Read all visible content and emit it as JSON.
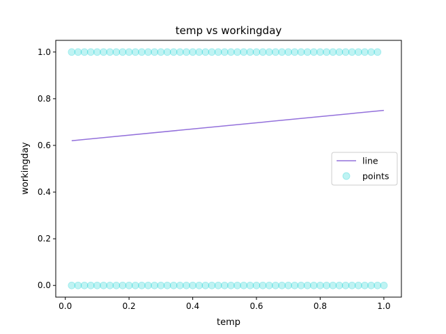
{
  "chart_data": {
    "type": "scatter",
    "title": "temp vs workingday",
    "xlabel": "temp",
    "ylabel": "workingday",
    "xlim": [
      -0.03,
      1.055
    ],
    "ylim": [
      -0.05,
      1.05
    ],
    "xticks": [
      0.0,
      0.2,
      0.4,
      0.6,
      0.8,
      1.0
    ],
    "xtick_labels": [
      "0.0",
      "0.2",
      "0.4",
      "0.6",
      "0.8",
      "1.0"
    ],
    "yticks": [
      0.0,
      0.2,
      0.4,
      0.6,
      0.8,
      1.0
    ],
    "ytick_labels": [
      "0.0",
      "0.2",
      "0.4",
      "0.6",
      "0.8",
      "1.0"
    ],
    "grid": false,
    "legend_position": "center-right",
    "series": [
      {
        "name": "line",
        "kind": "line",
        "color": "#9370DB",
        "x": [
          0.02,
          1.0
        ],
        "y": [
          0.62,
          0.75
        ]
      },
      {
        "name": "points",
        "kind": "scatter",
        "color": "#00CED1",
        "alpha": 0.25,
        "points": [
          {
            "x": 0.02,
            "y": 1
          },
          {
            "x": 0.04,
            "y": 1
          },
          {
            "x": 0.06,
            "y": 1
          },
          {
            "x": 0.08,
            "y": 1
          },
          {
            "x": 0.1,
            "y": 1
          },
          {
            "x": 0.12,
            "y": 1
          },
          {
            "x": 0.14,
            "y": 1
          },
          {
            "x": 0.16,
            "y": 1
          },
          {
            "x": 0.18,
            "y": 1
          },
          {
            "x": 0.2,
            "y": 1
          },
          {
            "x": 0.22,
            "y": 1
          },
          {
            "x": 0.24,
            "y": 1
          },
          {
            "x": 0.26,
            "y": 1
          },
          {
            "x": 0.28,
            "y": 1
          },
          {
            "x": 0.3,
            "y": 1
          },
          {
            "x": 0.32,
            "y": 1
          },
          {
            "x": 0.34,
            "y": 1
          },
          {
            "x": 0.36,
            "y": 1
          },
          {
            "x": 0.38,
            "y": 1
          },
          {
            "x": 0.4,
            "y": 1
          },
          {
            "x": 0.42,
            "y": 1
          },
          {
            "x": 0.44,
            "y": 1
          },
          {
            "x": 0.46,
            "y": 1
          },
          {
            "x": 0.48,
            "y": 1
          },
          {
            "x": 0.5,
            "y": 1
          },
          {
            "x": 0.52,
            "y": 1
          },
          {
            "x": 0.54,
            "y": 1
          },
          {
            "x": 0.56,
            "y": 1
          },
          {
            "x": 0.58,
            "y": 1
          },
          {
            "x": 0.6,
            "y": 1
          },
          {
            "x": 0.62,
            "y": 1
          },
          {
            "x": 0.64,
            "y": 1
          },
          {
            "x": 0.66,
            "y": 1
          },
          {
            "x": 0.68,
            "y": 1
          },
          {
            "x": 0.7,
            "y": 1
          },
          {
            "x": 0.72,
            "y": 1
          },
          {
            "x": 0.74,
            "y": 1
          },
          {
            "x": 0.76,
            "y": 1
          },
          {
            "x": 0.78,
            "y": 1
          },
          {
            "x": 0.8,
            "y": 1
          },
          {
            "x": 0.82,
            "y": 1
          },
          {
            "x": 0.84,
            "y": 1
          },
          {
            "x": 0.86,
            "y": 1
          },
          {
            "x": 0.88,
            "y": 1
          },
          {
            "x": 0.9,
            "y": 1
          },
          {
            "x": 0.92,
            "y": 1
          },
          {
            "x": 0.94,
            "y": 1
          },
          {
            "x": 0.96,
            "y": 1
          },
          {
            "x": 0.98,
            "y": 1
          },
          {
            "x": 0.02,
            "y": 0
          },
          {
            "x": 0.04,
            "y": 0
          },
          {
            "x": 0.06,
            "y": 0
          },
          {
            "x": 0.08,
            "y": 0
          },
          {
            "x": 0.1,
            "y": 0
          },
          {
            "x": 0.12,
            "y": 0
          },
          {
            "x": 0.14,
            "y": 0
          },
          {
            "x": 0.16,
            "y": 0
          },
          {
            "x": 0.18,
            "y": 0
          },
          {
            "x": 0.2,
            "y": 0
          },
          {
            "x": 0.22,
            "y": 0
          },
          {
            "x": 0.24,
            "y": 0
          },
          {
            "x": 0.26,
            "y": 0
          },
          {
            "x": 0.28,
            "y": 0
          },
          {
            "x": 0.3,
            "y": 0
          },
          {
            "x": 0.32,
            "y": 0
          },
          {
            "x": 0.34,
            "y": 0
          },
          {
            "x": 0.36,
            "y": 0
          },
          {
            "x": 0.38,
            "y": 0
          },
          {
            "x": 0.4,
            "y": 0
          },
          {
            "x": 0.42,
            "y": 0
          },
          {
            "x": 0.44,
            "y": 0
          },
          {
            "x": 0.46,
            "y": 0
          },
          {
            "x": 0.48,
            "y": 0
          },
          {
            "x": 0.5,
            "y": 0
          },
          {
            "x": 0.52,
            "y": 0
          },
          {
            "x": 0.54,
            "y": 0
          },
          {
            "x": 0.56,
            "y": 0
          },
          {
            "x": 0.58,
            "y": 0
          },
          {
            "x": 0.6,
            "y": 0
          },
          {
            "x": 0.62,
            "y": 0
          },
          {
            "x": 0.64,
            "y": 0
          },
          {
            "x": 0.66,
            "y": 0
          },
          {
            "x": 0.68,
            "y": 0
          },
          {
            "x": 0.7,
            "y": 0
          },
          {
            "x": 0.72,
            "y": 0
          },
          {
            "x": 0.74,
            "y": 0
          },
          {
            "x": 0.76,
            "y": 0
          },
          {
            "x": 0.78,
            "y": 0
          },
          {
            "x": 0.8,
            "y": 0
          },
          {
            "x": 0.82,
            "y": 0
          },
          {
            "x": 0.84,
            "y": 0
          },
          {
            "x": 0.86,
            "y": 0
          },
          {
            "x": 0.88,
            "y": 0
          },
          {
            "x": 0.9,
            "y": 0
          },
          {
            "x": 0.92,
            "y": 0
          },
          {
            "x": 0.94,
            "y": 0
          },
          {
            "x": 0.96,
            "y": 0
          },
          {
            "x": 0.98,
            "y": 0
          },
          {
            "x": 1.0,
            "y": 0
          }
        ]
      }
    ]
  }
}
